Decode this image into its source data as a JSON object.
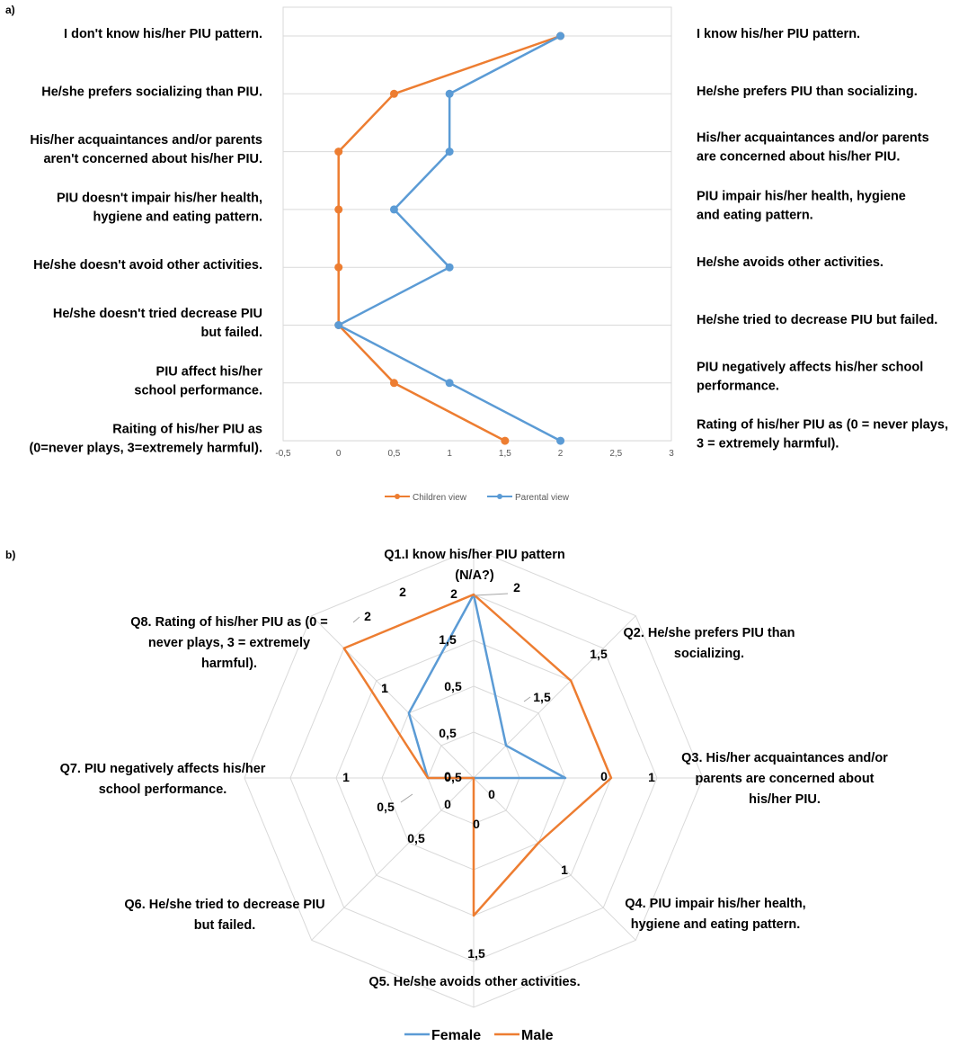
{
  "panel_a_label": "a)",
  "panel_b_label": "b)",
  "colors": {
    "children": "#ed7d31",
    "parental": "#5b9bd5",
    "female": "#5b9bd5",
    "male": "#ed7d31",
    "grid": "#d9d9d9"
  },
  "chart_data": [
    {
      "type": "line",
      "orientation": "horizontal",
      "title": "",
      "x_ticks": [
        "-0,5",
        "0",
        "0,5",
        "1",
        "1,5",
        "2",
        "2,5",
        "3"
      ],
      "xlim": [
        -0.5,
        3
      ],
      "left_labels": [
        [
          "I don't know his/her PIU pattern."
        ],
        [
          "He/she prefers socializing  than PIU."
        ],
        [
          "His/her acquaintances  and/or parents",
          "aren't concerned about his/her PIU."
        ],
        [
          "PIU doesn't impair his/her health,",
          "hygiene and eating pattern."
        ],
        [
          "He/she doesn't avoid  other activities."
        ],
        [
          "He/she doesn't tried decrease PIU",
          "but failed."
        ],
        [
          "PIU affect  his/her",
          "school performance."
        ],
        [
          "Raiting of his/her PIU as",
          "(0=never plays, 3=extremely harmful)."
        ]
      ],
      "right_labels": [
        [
          "I know his/her PIU pattern."
        ],
        [
          "He/she prefers PIU than  socializing."
        ],
        [
          "His/her acquaintances  and/or  parents",
          "are concerned about his/her PIU."
        ],
        [
          "PIU impair  his/her health, hygiene",
          "and eating pattern."
        ],
        [
          "He/she avoids other activities."
        ],
        [
          "He/she tried to decrease PIU but failed."
        ],
        [
          "PIU negatively affects his/her school",
          "performance."
        ],
        [
          "Rating of his/her PIU as (0 = never plays,",
          "3 = extremely harmful)."
        ]
      ],
      "series": [
        {
          "name": "Children view",
          "values": [
            2,
            0.5,
            0,
            0,
            0,
            0,
            0.5,
            1.5
          ]
        },
        {
          "name": "Parental view",
          "values": [
            2,
            1,
            1,
            0.5,
            1,
            0,
            1,
            2
          ]
        }
      ],
      "legend": [
        "Children view",
        "Parental view"
      ]
    },
    {
      "type": "radar",
      "title": "",
      "rmax": 2.5,
      "axes": [
        [
          "Q1.I know his/her PIU pattern",
          "(N/A?)"
        ],
        [
          "Q2. He/she prefers PIU than",
          "socializing."
        ],
        [
          "Q3. His/her acquaintances and/or",
          "parents are concerned about",
          "his/her PIU."
        ],
        [
          "Q4. PIU impair his/her health,",
          "hygiene and eating pattern."
        ],
        [
          "Q5. He/she avoids other activities."
        ],
        [
          "Q6. He/she tried to decrease PIU",
          "but failed."
        ],
        [
          "Q7. PIU negatively affects his/her",
          "school performance."
        ],
        [
          "Q8. Rating of his/her PIU as (0 =",
          "never plays, 3 = extremely",
          "harmful)."
        ]
      ],
      "series": [
        {
          "name": "Female",
          "values": [
            2,
            0.5,
            1,
            0,
            0,
            0,
            0.5,
            1
          ]
        },
        {
          "name": "Male",
          "values": [
            2,
            1.5,
            1.5,
            1,
            1.5,
            0,
            0.5,
            2
          ]
        }
      ],
      "data_labels": [
        "2",
        "2",
        "2",
        "1,5",
        "1",
        "0,5",
        "1,5",
        "1,5",
        "1",
        "0,5",
        "1",
        "0",
        "1,5",
        "0",
        "0",
        "0",
        "0,5",
        "0,5",
        "0",
        "1",
        "0,5",
        "2",
        "1"
      ],
      "legend": [
        "Female",
        "Male"
      ]
    }
  ]
}
